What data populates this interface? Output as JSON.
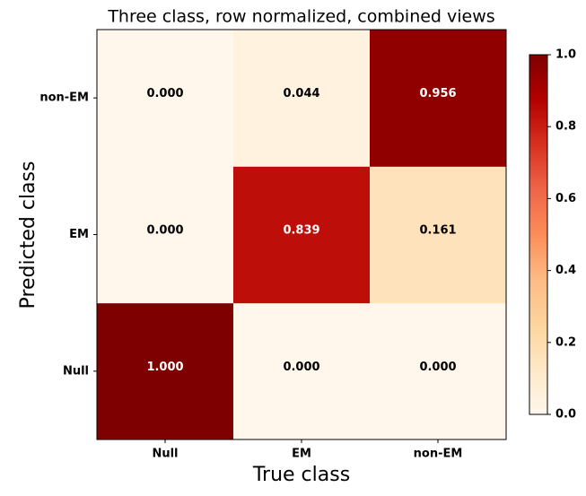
{
  "chart_data": {
    "type": "heatmap",
    "title": "Three class, row normalized, combined views",
    "x_label": "True class",
    "y_label": "Predicted class",
    "x_categories": [
      "Null",
      "EM",
      "non-EM"
    ],
    "y_categories": [
      "Null",
      "EM",
      "non-EM"
    ],
    "values": [
      [
        1,
        0,
        0
      ],
      [
        0,
        0.839,
        0.161
      ],
      [
        0,
        0.044,
        0.956
      ]
    ],
    "value_labels": [
      [
        "1.000",
        "0.000",
        "0.000"
      ],
      [
        "0.000",
        "0.839",
        "0.161"
      ],
      [
        "0.000",
        "0.044",
        "0.956"
      ]
    ],
    "colormap": "OrRd",
    "clim": [
      0,
      1
    ],
    "cticks": [
      {
        "value": 0,
        "label": "0.0"
      },
      {
        "value": 0.2,
        "label": "0.2"
      },
      {
        "value": 0.4,
        "label": "0.4"
      },
      {
        "value": 0.6,
        "label": "0.6"
      },
      {
        "value": 0.8,
        "label": "0.8"
      },
      {
        "value": 1,
        "label": "1.0"
      }
    ]
  }
}
